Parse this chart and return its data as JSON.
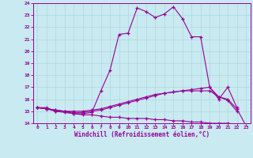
{
  "title": "",
  "xlabel": "Windchill (Refroidissement éolien,°C)",
  "ylabel": "",
  "background_color": "#c8eaf0",
  "line_color": "#990099",
  "grid_color": "#afd8e0",
  "xlim": [
    -0.5,
    23.5
  ],
  "ylim": [
    14,
    24
  ],
  "yticks": [
    14,
    15,
    16,
    17,
    18,
    19,
    20,
    21,
    22,
    23,
    24
  ],
  "xticks": [
    0,
    1,
    2,
    3,
    4,
    5,
    6,
    7,
    8,
    9,
    10,
    11,
    12,
    13,
    14,
    15,
    16,
    17,
    18,
    19,
    20,
    21,
    22,
    23
  ],
  "lines": [
    {
      "x": [
        0,
        1,
        2,
        3,
        4,
        5,
        6,
        7,
        8,
        9,
        10,
        11,
        12,
        13,
        14,
        15,
        16,
        17,
        18,
        19,
        20,
        21,
        22
      ],
      "y": [
        15.3,
        15.3,
        15.0,
        15.0,
        14.8,
        14.8,
        14.9,
        16.7,
        18.4,
        21.4,
        21.5,
        23.6,
        23.3,
        22.8,
        23.1,
        23.7,
        22.7,
        21.2,
        21.2,
        17.0,
        16.0,
        17.0,
        15.3
      ]
    },
    {
      "x": [
        0,
        1,
        2,
        3,
        4,
        5,
        6,
        7,
        8,
        9,
        10,
        11,
        12,
        13,
        14,
        15,
        16,
        17,
        18,
        19,
        20,
        21,
        22,
        23
      ],
      "y": [
        15.3,
        15.2,
        15.1,
        15.0,
        14.9,
        14.9,
        15.0,
        15.1,
        15.3,
        15.5,
        15.7,
        15.9,
        16.1,
        16.3,
        16.5,
        16.6,
        16.7,
        16.8,
        16.9,
        17.0,
        16.2,
        16.0,
        15.2,
        13.8
      ]
    },
    {
      "x": [
        0,
        1,
        2,
        3,
        4,
        5,
        6,
        7,
        8,
        9,
        10,
        11,
        12,
        13,
        14,
        15,
        16,
        17,
        18,
        19,
        20,
        21,
        22,
        23
      ],
      "y": [
        15.3,
        15.2,
        15.0,
        14.9,
        14.8,
        14.7,
        14.7,
        14.6,
        14.5,
        14.5,
        14.4,
        14.4,
        14.4,
        14.3,
        14.3,
        14.2,
        14.2,
        14.1,
        14.1,
        14.0,
        14.0,
        14.0,
        13.9,
        13.8
      ]
    },
    {
      "x": [
        0,
        1,
        2,
        3,
        4,
        5,
        6,
        7,
        8,
        9,
        10,
        11,
        12,
        13,
        14,
        15,
        16,
        17,
        18,
        19,
        20,
        21,
        22
      ],
      "y": [
        15.3,
        15.2,
        15.1,
        15.0,
        15.0,
        15.0,
        15.1,
        15.2,
        15.4,
        15.6,
        15.8,
        16.0,
        16.2,
        16.4,
        16.5,
        16.6,
        16.7,
        16.7,
        16.7,
        16.7,
        16.2,
        15.9,
        15.0
      ]
    }
  ]
}
